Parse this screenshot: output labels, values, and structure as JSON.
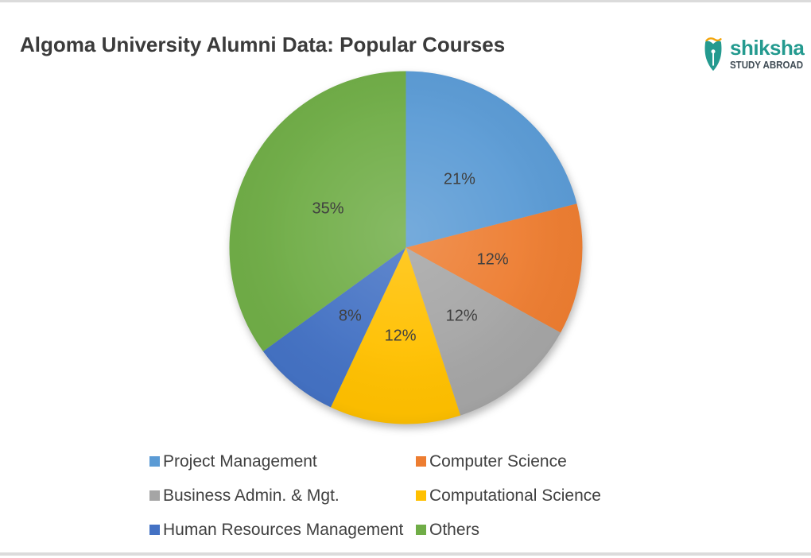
{
  "page": {
    "title": "Algoma University Alumni Data: Popular Courses"
  },
  "brand": {
    "name": "shiksha",
    "tagline": "STUDY ABROAD",
    "teal": "#249a8f",
    "dark_slate": "#3e4a53",
    "accent_orange": "#f2a40a"
  },
  "chart_data": {
    "type": "pie",
    "title": "Algoma University Alumni Data: Popular Courses",
    "start_angle_deg": 0,
    "direction": "clockwise",
    "labels_format": "percent",
    "label_color": "#404040",
    "legend_position": "bottom",
    "legend_columns": 2,
    "series": [
      {
        "name": "Project Management",
        "value": 21,
        "color": "#5b9bd5"
      },
      {
        "name": "Computer Science",
        "value": 12,
        "color": "#ed7d31"
      },
      {
        "name": "Business Admin. & Mgt.",
        "value": 12,
        "color": "#a5a5a5"
      },
      {
        "name": "Computational Science",
        "value": 12,
        "color": "#ffc000"
      },
      {
        "name": "Human Resources Management",
        "value": 8,
        "color": "#4472c4"
      },
      {
        "name": "Others",
        "value": 35,
        "color": "#70ad47"
      }
    ]
  }
}
